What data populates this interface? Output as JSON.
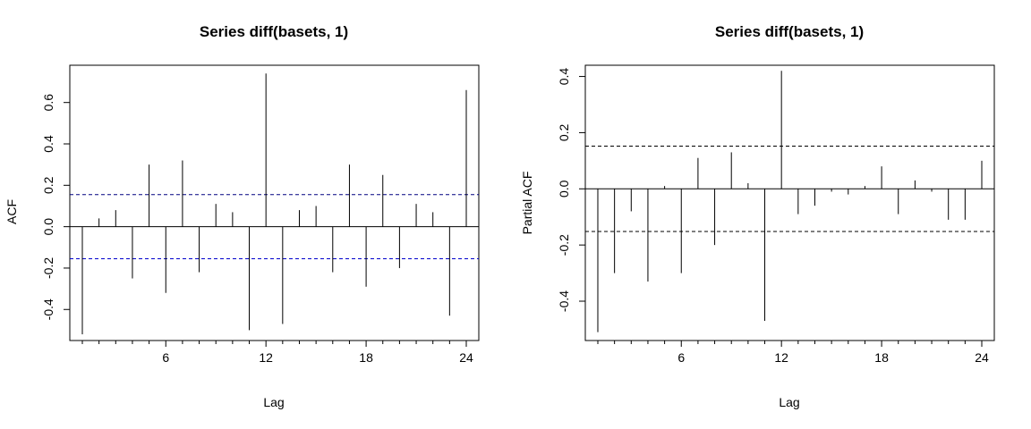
{
  "chart_data": [
    {
      "type": "bar",
      "name": "acf",
      "title": "Series  diff(basets, 1)",
      "xlabel": "Lag",
      "ylabel": "ACF",
      "xlim": [
        0.25,
        24.75
      ],
      "ylim": [
        -0.55,
        0.78
      ],
      "xticks": [
        6,
        12,
        18,
        24
      ],
      "yticks": [
        -0.4,
        -0.2,
        0.0,
        0.2,
        0.4,
        0.6
      ],
      "ytick_labels": [
        "-0.4",
        "-0.2",
        "0.0",
        "0.2",
        "0.4",
        "0.6"
      ],
      "ci": 0.155,
      "ci_color": "#0000cc",
      "lower_ci_color": "#0000cc",
      "upper_ci_color": "#000080",
      "lags": [
        1,
        2,
        3,
        4,
        5,
        6,
        7,
        8,
        9,
        10,
        11,
        12,
        13,
        14,
        15,
        16,
        17,
        18,
        19,
        20,
        21,
        22,
        23,
        24
      ],
      "values": [
        -0.52,
        0.04,
        0.08,
        -0.25,
        0.3,
        -0.32,
        0.32,
        -0.22,
        0.11,
        0.07,
        -0.5,
        0.74,
        -0.47,
        0.08,
        0.1,
        -0.22,
        0.3,
        -0.29,
        0.25,
        -0.2,
        0.11,
        0.07,
        -0.43,
        0.66
      ]
    },
    {
      "type": "bar",
      "name": "pacf",
      "title": "Series  diff(basets, 1)",
      "xlabel": "Lag",
      "ylabel": "Partial ACF",
      "xlim": [
        0.25,
        24.75
      ],
      "ylim": [
        -0.54,
        0.44
      ],
      "xticks": [
        6,
        12,
        18,
        24
      ],
      "yticks": [
        -0.4,
        -0.2,
        0.0,
        0.2,
        0.4
      ],
      "ytick_labels": [
        "-0.4",
        "-0.2",
        "0.0",
        "0.2",
        "0.4"
      ],
      "ci": 0.152,
      "ci_color": "#000000",
      "lower_ci_color": "#000000",
      "upper_ci_color": "#000000",
      "lags": [
        1,
        2,
        3,
        4,
        5,
        6,
        7,
        8,
        9,
        10,
        11,
        12,
        13,
        14,
        15,
        16,
        17,
        18,
        19,
        20,
        21,
        22,
        23,
        24
      ],
      "values": [
        -0.51,
        -0.3,
        -0.08,
        -0.33,
        0.01,
        -0.3,
        0.11,
        -0.2,
        0.13,
        0.02,
        -0.47,
        0.42,
        -0.09,
        -0.06,
        -0.01,
        -0.02,
        0.01,
        0.08,
        -0.09,
        0.03,
        -0.01,
        -0.11,
        -0.11,
        0.1
      ]
    }
  ]
}
